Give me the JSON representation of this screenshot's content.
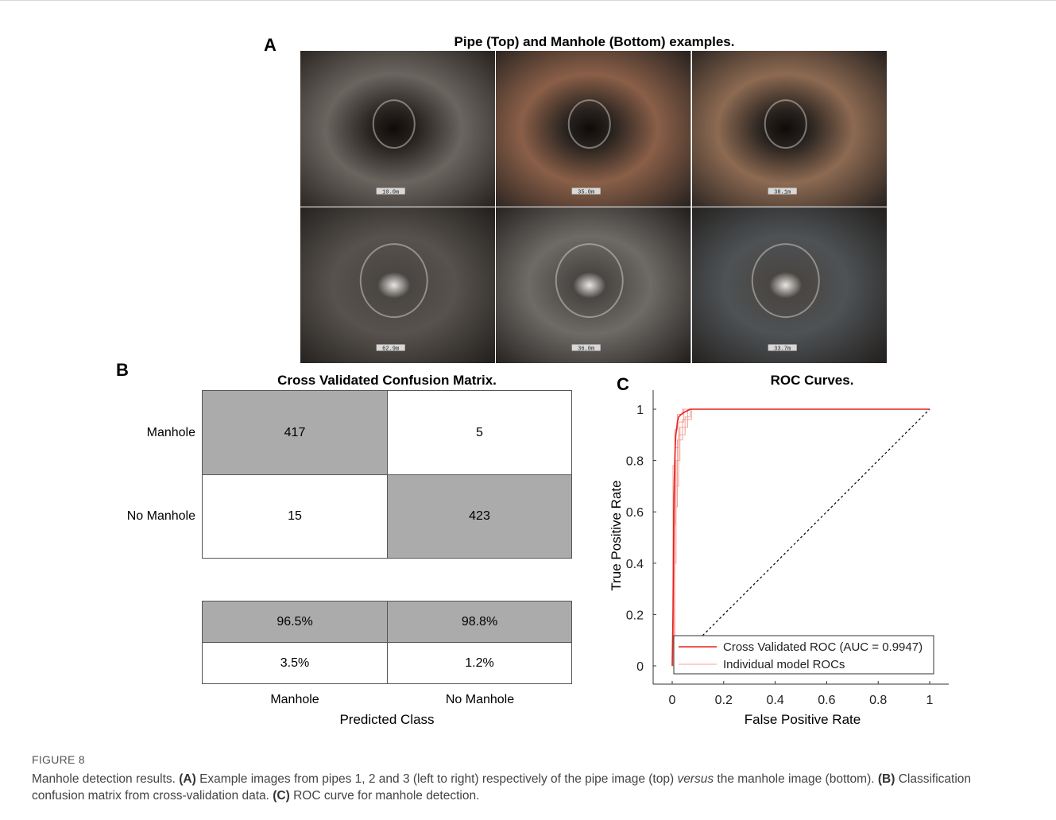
{
  "figure_label": "FIGURE 8",
  "caption": {
    "intro": "Manhole detection results. ",
    "a_tag": "(A)",
    "a_text": " Example images from pipes 1, 2 and 3 (left to right) respectively of the pipe image (top) ",
    "versus": "versus",
    "a_text2": " the manhole image (bottom). ",
    "b_tag": "(B)",
    "b_text": " Classification confusion matrix from cross-validation data. ",
    "c_tag": "(C)",
    "c_text": " ROC curve for manhole detection."
  },
  "panel_a": {
    "letter": "A",
    "title": "Pipe (Top) and Manhole (Bottom) examples.",
    "tiles": [
      {
        "label": "10.0m",
        "tint": "#6b6560"
      },
      {
        "label": "35.0m",
        "tint": "#8a5f48"
      },
      {
        "label": "38.1m",
        "tint": "#8d6a52"
      },
      {
        "label": "62.9m",
        "tint": "#57524d"
      },
      {
        "label": "36.0m",
        "tint": "#6e6a66"
      },
      {
        "label": "33.7m",
        "tint": "#4e5255"
      }
    ]
  },
  "panel_b": {
    "letter": "B",
    "title": "Cross Validated Confusion Matrix.",
    "row_labels": [
      "Manhole",
      "No Manhole"
    ],
    "col_labels": [
      "Manhole",
      "No Manhole"
    ],
    "xlabel": "Predicted Class",
    "matrix": [
      [
        "417",
        "5"
      ],
      [
        "15",
        "423"
      ]
    ],
    "summary": [
      [
        "96.5%",
        "98.8%"
      ],
      [
        "3.5%",
        "1.2%"
      ]
    ],
    "diag_color": "#ababab"
  },
  "panel_c": {
    "letter": "C",
    "title": "ROC Curves.",
    "xlabel": "False Positive Rate",
    "ylabel": "True Positive Rate",
    "legend": [
      "Cross Validated ROC (AUC = 0.9947)",
      "Individual model ROCs"
    ]
  },
  "chart_data": {
    "type": "line",
    "title": "ROC Curves.",
    "xlabel": "False Positive Rate",
    "ylabel": "True Positive Rate",
    "xlim": [
      0,
      1
    ],
    "ylim": [
      0,
      1
    ],
    "xticks": [
      "0",
      "0.2",
      "0.4",
      "0.6",
      "0.8",
      "1"
    ],
    "yticks": [
      "0",
      "0.2",
      "0.4",
      "0.6",
      "0.8",
      "1"
    ],
    "legend_position": "bottom-right",
    "series": [
      {
        "name": "Cross Validated ROC (AUC = 0.9947)",
        "color": "#e8201c",
        "x": [
          0,
          0.003,
          0.005,
          0.006,
          0.008,
          0.01,
          0.012,
          0.014,
          0.018,
          0.02,
          0.025,
          0.035,
          0.05,
          0.07,
          1
        ],
        "y": [
          0,
          0.2,
          0.45,
          0.6,
          0.72,
          0.8,
          0.86,
          0.9,
          0.93,
          0.95,
          0.97,
          0.98,
          0.99,
          1,
          1
        ]
      },
      {
        "name": "Individual model ROCs",
        "color": "#f4a19a",
        "curves": [
          {
            "x": [
              0,
              0.004,
              0.004,
              0.012,
              0.012,
              0.025,
              0.025,
              0.045,
              0.045,
              1
            ],
            "y": [
              0,
              0,
              0.55,
              0.55,
              0.85,
              0.85,
              0.95,
              0.95,
              1,
              1
            ]
          },
          {
            "x": [
              0,
              0.006,
              0.006,
              0.015,
              0.015,
              0.03,
              0.03,
              0.06,
              0.06,
              1
            ],
            "y": [
              0,
              0,
              0.4,
              0.4,
              0.8,
              0.8,
              0.93,
              0.93,
              1,
              1
            ]
          },
          {
            "x": [
              0,
              0.008,
              0.008,
              0.02,
              0.02,
              0.04,
              0.04,
              0.075,
              0.075,
              1
            ],
            "y": [
              0,
              0,
              0.62,
              0.62,
              0.88,
              0.88,
              0.96,
              0.96,
              1,
              1
            ]
          },
          {
            "x": [
              0,
              0.01,
              0.01,
              0.025,
              0.025,
              0.05,
              0.05,
              0.07,
              0.07,
              1
            ],
            "y": [
              0,
              0,
              0.7,
              0.7,
              0.9,
              0.9,
              0.97,
              0.97,
              1,
              1
            ]
          },
          {
            "x": [
              0,
              0.003,
              0.003,
              0.01,
              0.01,
              0.02,
              0.02,
              0.04,
              0.04,
              1
            ],
            "y": [
              0,
              0,
              0.78,
              0.78,
              0.92,
              0.92,
              0.98,
              0.98,
              1,
              1
            ]
          }
        ]
      },
      {
        "name": "",
        "style": "dotted",
        "color": "#000000",
        "x": [
          0,
          1
        ],
        "y": [
          0,
          1
        ]
      }
    ]
  }
}
